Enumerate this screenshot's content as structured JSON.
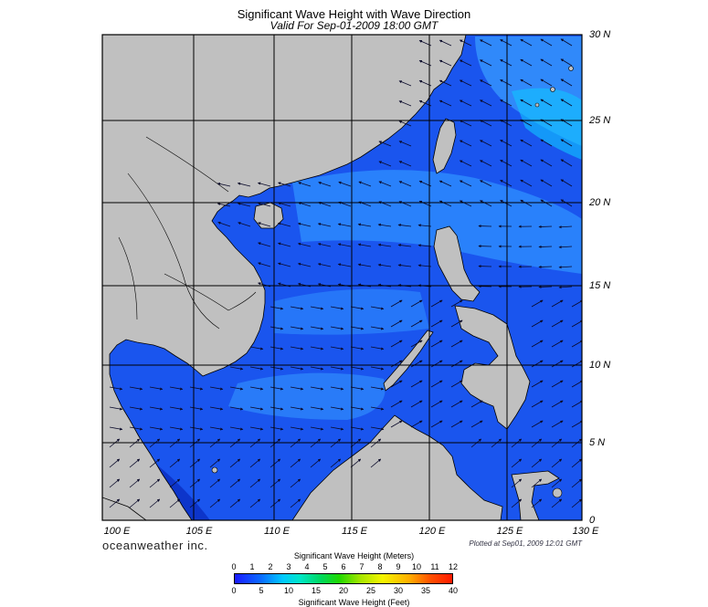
{
  "title": "Significant Wave Height with Wave Direction",
  "subtitle": "Valid For Sep-01-2009 18:00 GMT",
  "lon_labels": [
    "100 E",
    "105 E",
    "110 E",
    "115 E",
    "120 E",
    "125 E",
    "130 E"
  ],
  "lat_labels": [
    "30 N",
    "25 N",
    "20 N",
    "15 N",
    "10 N",
    "5 N",
    "0"
  ],
  "brand": "oceanweather inc.",
  "plotted": "Plotted at Sep01, 2009 12:01 GMT",
  "colorbar": {
    "meters_title": "Significant Wave Height (Meters)",
    "feet_title": "Significant Wave Height (Feet)",
    "meter_ticks": [
      "0",
      "1",
      "2",
      "3",
      "4",
      "5",
      "6",
      "7",
      "8",
      "9",
      "10",
      "11",
      "12"
    ],
    "feet_ticks": [
      "0",
      "5",
      "10",
      "15",
      "20",
      "25",
      "30",
      "35",
      "40"
    ]
  },
  "colors": {
    "ocean": "#1a55ee",
    "ocean_light": "#2f90ff",
    "land": "#c0c0c0",
    "grid": "#000000"
  }
}
